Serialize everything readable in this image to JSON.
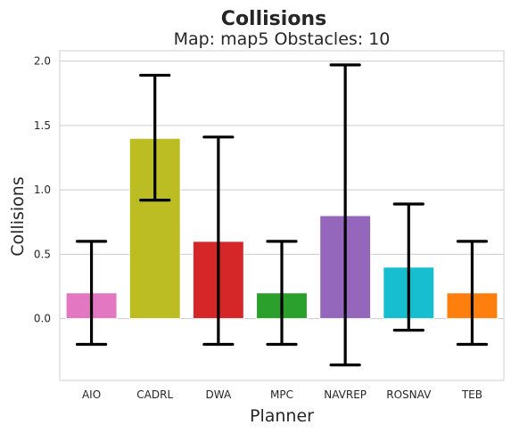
{
  "chart_data": {
    "type": "bar",
    "title": "Collisions",
    "subtitle": "Map: map5 Obstacles: 10",
    "xlabel": "Planner",
    "ylabel": "Collisions",
    "categories": [
      "AIO",
      "CADRL",
      "DWA",
      "MPC",
      "NAVREP",
      "ROSNAV",
      "TEB"
    ],
    "values": [
      0.2,
      1.4,
      0.6,
      0.2,
      0.8,
      0.4,
      0.2
    ],
    "error_low": [
      -0.2,
      0.92,
      -0.2,
      -0.2,
      -0.36,
      -0.09,
      -0.2
    ],
    "error_high": [
      0.6,
      1.89,
      1.41,
      0.6,
      1.97,
      0.89,
      0.6
    ],
    "colors": [
      "#e377c2",
      "#bcbd22",
      "#d62728",
      "#2ca02c",
      "#9467bd",
      "#17becf",
      "#ff7f0e"
    ],
    "ylim": [
      -0.48,
      2.08
    ],
    "yticks": [
      0.0,
      0.5,
      1.0,
      1.5,
      2.0
    ],
    "ytick_labels": [
      "0.0",
      "0.5",
      "1.0",
      "1.5",
      "2.0"
    ],
    "grid": true
  }
}
